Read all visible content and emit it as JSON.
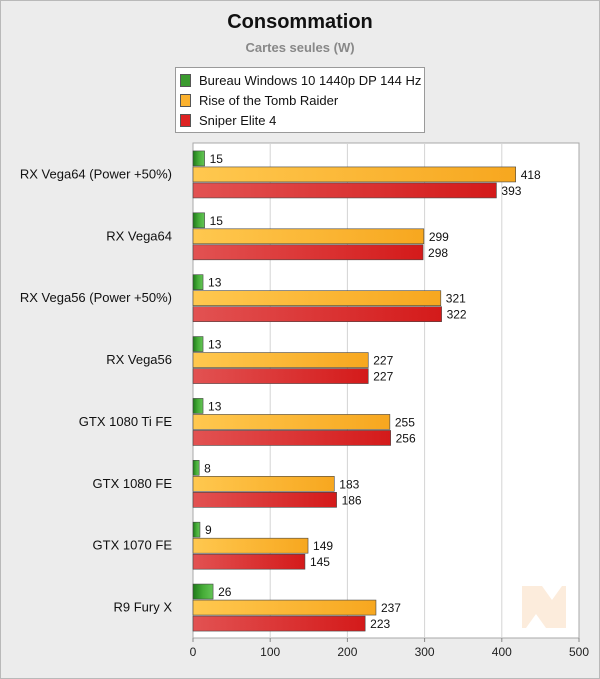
{
  "header": {
    "title": "Consommation",
    "subtitle": "Cartes seules (W)"
  },
  "colors": {
    "series": [
      "#3a9a2e",
      "#fbb12d",
      "#dd2222"
    ]
  },
  "chart_data": {
    "type": "bar",
    "orientation": "horizontal",
    "title": "Consommation",
    "subtitle": "Cartes seules (W)",
    "xlabel": "",
    "ylabel": "",
    "xlim": [
      0,
      500
    ],
    "x_ticks": [
      "0",
      "100",
      "200",
      "300",
      "400",
      "500"
    ],
    "grid": true,
    "legend_position": "top",
    "categories": [
      "RX Vega64 (Power +50%)",
      "RX Vega64",
      "RX Vega56 (Power +50%)",
      "RX Vega56",
      "GTX 1080 Ti FE",
      "GTX 1080 FE",
      "GTX 1070 FE",
      "R9 Fury X"
    ],
    "series": [
      {
        "name": "Bureau Windows 10 1440p DP 144 Hz",
        "values": [
          15,
          15,
          13,
          13,
          13,
          8,
          9,
          26
        ]
      },
      {
        "name": "Rise of the Tomb Raider",
        "values": [
          418,
          299,
          321,
          227,
          255,
          183,
          149,
          237
        ]
      },
      {
        "name": "Sniper Elite 4",
        "values": [
          393,
          298,
          322,
          227,
          256,
          186,
          145,
          223
        ]
      }
    ]
  }
}
